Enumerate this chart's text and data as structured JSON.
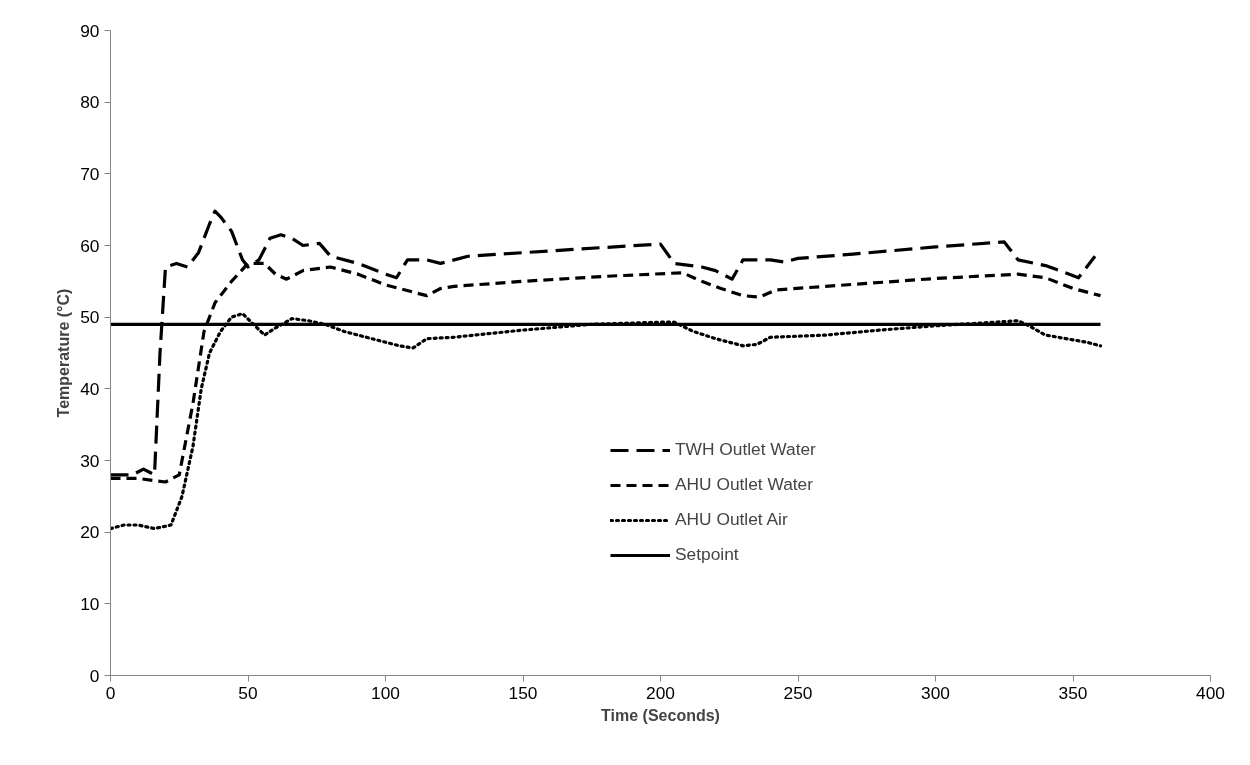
{
  "chart_data": {
    "type": "line",
    "xlabel": "Time (Seconds)",
    "ylabel": "Temperature (°C)",
    "xlim": [
      0,
      400
    ],
    "xticks": [
      0,
      50,
      100,
      150,
      200,
      250,
      300,
      350,
      400
    ],
    "ylim": [
      0,
      90
    ],
    "yticks": [
      0,
      10,
      20,
      30,
      40,
      50,
      60,
      70,
      80,
      90
    ],
    "grid": false,
    "legend": "center",
    "marker": "none",
    "series": [
      {
        "name": "TWH Outlet Water",
        "color": "#000000",
        "line_style": "dashed",
        "x": [
          0,
          8,
          12,
          16,
          18,
          20,
          24,
          28,
          32,
          36,
          38,
          40,
          44,
          48,
          50,
          54,
          58,
          62,
          66,
          70,
          76,
          80,
          90,
          100,
          104,
          108,
          115,
          120,
          130,
          150,
          170,
          200,
          205,
          215,
          220,
          226,
          230,
          240,
          245,
          250,
          270,
          300,
          325,
          330,
          340,
          345,
          352,
          358
        ],
        "values": [
          28,
          28,
          28.8,
          28,
          45,
          57,
          57.5,
          57,
          59,
          63,
          64.8,
          64,
          62,
          58,
          57,
          58,
          61,
          61.5,
          61,
          60,
          60.3,
          58.5,
          57.5,
          56,
          55.5,
          58,
          58,
          57.5,
          58.5,
          59,
          59.5,
          60.2,
          57.5,
          57,
          56.5,
          55.3,
          58,
          58,
          57.7,
          58.2,
          58.8,
          59.8,
          60.5,
          58,
          57.2,
          56.5,
          55.5,
          58.5
        ]
      },
      {
        "name": "AHU Outlet Water",
        "color": "#000000",
        "line_style": "dashed",
        "x": [
          0,
          10,
          20,
          25,
          30,
          34,
          38,
          44,
          50,
          56,
          60,
          64,
          70,
          80,
          90,
          100,
          110,
          115,
          120,
          125,
          150,
          180,
          208,
          215,
          222,
          230,
          236,
          242,
          260,
          300,
          330,
          340,
          350,
          360
        ],
        "values": [
          27.5,
          27.5,
          27,
          28,
          38,
          48,
          52,
          55,
          57.5,
          57.5,
          56,
          55.3,
          56.5,
          57,
          56,
          54.5,
          53.5,
          53,
          54,
          54.3,
          55,
          55.7,
          56.2,
          55,
          54,
          53,
          52.8,
          53.8,
          54.3,
          55.4,
          56,
          55.5,
          54,
          53
        ]
      },
      {
        "name": "AHU Outlet Air",
        "color": "#000000",
        "line_style": "dotted",
        "x": [
          0,
          5,
          10,
          16,
          22,
          26,
          30,
          33,
          36,
          40,
          44,
          48,
          52,
          56,
          60,
          66,
          72,
          78,
          85,
          95,
          105,
          110,
          115,
          125,
          150,
          175,
          200,
          205,
          212,
          220,
          230,
          235,
          240,
          260,
          280,
          300,
          330,
          333,
          340,
          355,
          360
        ],
        "values": [
          20.5,
          21,
          21,
          20.5,
          21,
          25,
          32,
          40,
          45,
          48,
          50,
          50.5,
          49,
          47.5,
          48.5,
          49.8,
          49.5,
          49,
          48,
          47,
          46,
          45.7,
          47,
          47.2,
          48.2,
          49,
          49.3,
          49.3,
          48,
          47,
          46,
          46.2,
          47.2,
          47.5,
          48.2,
          48.8,
          49.5,
          49,
          47.5,
          46.5,
          46
        ]
      },
      {
        "name": "Setpoint",
        "color": "#000000",
        "line_style": "solid",
        "x": [
          0,
          360
        ],
        "values": [
          49,
          49
        ]
      }
    ]
  }
}
